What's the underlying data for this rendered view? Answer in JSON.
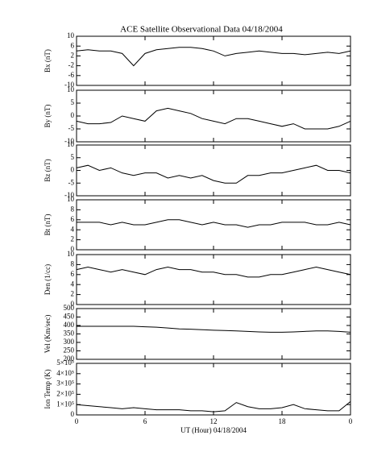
{
  "chart_data": [
    {
      "type": "line",
      "title": "ACE Satellite Observational Data   04/18/2004",
      "y_label": "Bx (nT)",
      "x": [
        0,
        1,
        2,
        3,
        4,
        5,
        6,
        7,
        8,
        9,
        10,
        11,
        12,
        13,
        14,
        15,
        16,
        17,
        18,
        19,
        20,
        21,
        22,
        23,
        24
      ],
      "xlim": [
        0,
        24
      ],
      "values": [
        4,
        4.5,
        4,
        4,
        3,
        -2,
        3,
        4.5,
        5,
        5.5,
        5.5,
        5,
        4,
        2,
        3,
        3.5,
        4,
        3.5,
        3,
        3,
        2.5,
        3,
        3.5,
        3,
        4
      ],
      "ylim": [
        -10,
        10
      ],
      "yticks": [
        -10,
        -6,
        -2,
        2,
        6,
        10
      ],
      "color": "#000000"
    },
    {
      "type": "line",
      "y_label": "By (nT)",
      "x": [
        0,
        1,
        2,
        3,
        4,
        5,
        6,
        7,
        8,
        9,
        10,
        11,
        12,
        13,
        14,
        15,
        16,
        17,
        18,
        19,
        20,
        21,
        22,
        23,
        24
      ],
      "xlim": [
        0,
        24
      ],
      "values": [
        -2,
        -3,
        -3,
        -2.5,
        0,
        -1,
        -2,
        2,
        3,
        2,
        1,
        -1,
        -2,
        -3,
        -1,
        -1,
        -2,
        -3,
        -4,
        -3,
        -5,
        -5,
        -5,
        -4,
        -2
      ],
      "ylim": [
        -10,
        10
      ],
      "yticks": [
        -10,
        -5,
        0,
        5,
        10
      ],
      "color": "#000000"
    },
    {
      "type": "line",
      "y_label": "Bz (nT)",
      "x": [
        0,
        1,
        2,
        3,
        4,
        5,
        6,
        7,
        8,
        9,
        10,
        11,
        12,
        13,
        14,
        15,
        16,
        17,
        18,
        19,
        20,
        21,
        22,
        23,
        24
      ],
      "xlim": [
        0,
        24
      ],
      "values": [
        1,
        2,
        0,
        1,
        -1,
        -2,
        -1,
        -1,
        -3,
        -2,
        -3,
        -2,
        -4,
        -5,
        -5,
        -2,
        -2,
        -1,
        -1,
        0,
        1,
        2,
        0,
        0,
        -1
      ],
      "ylim": [
        -10,
        10
      ],
      "yticks": [
        -10,
        -5,
        0,
        5,
        10
      ],
      "color": "#000000"
    },
    {
      "type": "line",
      "y_label": "Bt (nT)",
      "x": [
        0,
        1,
        2,
        3,
        4,
        5,
        6,
        7,
        8,
        9,
        10,
        11,
        12,
        13,
        14,
        15,
        16,
        17,
        18,
        19,
        20,
        21,
        22,
        23,
        24
      ],
      "xlim": [
        0,
        24
      ],
      "values": [
        5.5,
        5.5,
        5.5,
        5,
        5.5,
        5,
        5,
        5.5,
        6,
        6,
        5.5,
        5,
        5.5,
        5,
        5,
        4.5,
        5,
        5,
        5.5,
        5.5,
        5.5,
        5,
        5,
        5.5,
        5
      ],
      "ylim": [
        0,
        10
      ],
      "yticks": [
        0,
        2,
        4,
        6,
        8,
        10
      ],
      "color": "#000000"
    },
    {
      "type": "line",
      "y_label": "Den (1/cc)",
      "x": [
        0,
        1,
        2,
        3,
        4,
        5,
        6,
        7,
        8,
        9,
        10,
        11,
        12,
        13,
        14,
        15,
        16,
        17,
        18,
        19,
        20,
        21,
        22,
        23,
        24
      ],
      "xlim": [
        0,
        24
      ],
      "values": [
        7,
        7.5,
        7,
        6.5,
        7,
        6.5,
        6,
        7,
        7.5,
        7,
        7,
        6.5,
        6.5,
        6,
        6,
        5.5,
        5.5,
        6,
        6,
        6.5,
        7,
        7.5,
        7,
        6.5,
        6
      ],
      "ylim": [
        0,
        10
      ],
      "yticks": [
        0,
        2,
        4,
        6,
        8,
        10
      ],
      "color": "#000000"
    },
    {
      "type": "line",
      "y_label": "Vel (Km/sec)",
      "x": [
        0,
        1,
        2,
        3,
        4,
        5,
        6,
        7,
        8,
        9,
        10,
        11,
        12,
        13,
        14,
        15,
        16,
        17,
        18,
        19,
        20,
        21,
        22,
        23,
        24
      ],
      "xlim": [
        0,
        24
      ],
      "values": [
        395,
        395,
        395,
        395,
        395,
        395,
        392,
        390,
        385,
        380,
        378,
        375,
        372,
        370,
        368,
        365,
        362,
        360,
        360,
        362,
        365,
        368,
        368,
        365,
        360
      ],
      "ylim": [
        200,
        500
      ],
      "yticks": [
        200,
        250,
        300,
        350,
        400,
        450,
        500
      ],
      "color": "#000000"
    },
    {
      "type": "line",
      "y_label": "Ion Temp (K)",
      "x_label": "UT (Hour)  04/18/2004",
      "x": [
        0,
        1,
        2,
        3,
        4,
        5,
        6,
        7,
        8,
        9,
        10,
        11,
        12,
        13,
        14,
        15,
        16,
        17,
        18,
        19,
        20,
        21,
        22,
        23,
        24
      ],
      "xlim": [
        0,
        24
      ],
      "xticks": [
        0,
        6,
        12,
        18,
        {
          "value": 24,
          "label": "0"
        }
      ],
      "values": [
        100000,
        90000,
        80000,
        70000,
        60000,
        70000,
        60000,
        50000,
        50000,
        50000,
        40000,
        40000,
        30000,
        40000,
        120000,
        80000,
        60000,
        60000,
        70000,
        100000,
        60000,
        50000,
        40000,
        40000,
        130000
      ],
      "ylim": [
        0,
        500000
      ],
      "yticks": [
        0,
        {
          "value": 100000,
          "label": "1×10⁵"
        },
        {
          "value": 200000,
          "label": "2×10⁵"
        },
        {
          "value": 300000,
          "label": "3×10⁵"
        },
        {
          "value": 400000,
          "label": "4×10⁵"
        },
        {
          "value": 500000,
          "label": "5×10⁵"
        }
      ],
      "color": "#000000"
    }
  ]
}
